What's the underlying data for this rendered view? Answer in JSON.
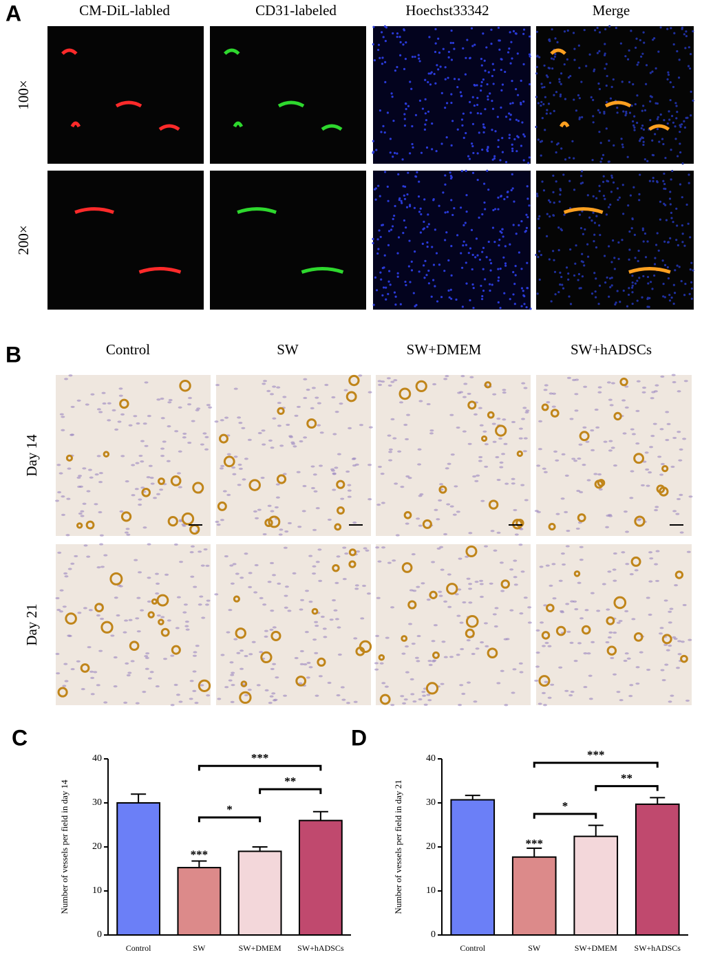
{
  "panel_a": {
    "label": "A",
    "columns": [
      "CM-DiL-labled",
      "CD31-labeled",
      "Hoechst33342",
      "Merge"
    ],
    "rows": [
      "100×",
      "200×"
    ]
  },
  "panel_b": {
    "label": "B",
    "columns": [
      "Control",
      "SW",
      "SW+DMEM",
      "SW+hADSCs"
    ],
    "rows": [
      "Day 14",
      "Day 21"
    ]
  },
  "chart_data": [
    {
      "panel_label": "C",
      "type": "bar",
      "y_label": "Number of  vessels per field in day 14",
      "categories": [
        "Control",
        "SW",
        "SW+DMEM",
        "SW+hADSCs"
      ],
      "values": [
        30,
        15.3,
        19,
        26
      ],
      "errors": [
        2,
        1.5,
        1,
        2
      ],
      "colors": [
        "#6b7ff7",
        "#dc8a8a",
        "#f3d7da",
        "#c0496e"
      ],
      "ylim": [
        0,
        40
      ],
      "yticks": [
        0,
        10,
        20,
        30,
        40
      ],
      "annotations": [
        {
          "text": "***",
          "category": "SW",
          "y": 18
        },
        {
          "text": "*",
          "from": "SW",
          "to": "SW+DMEM",
          "y": 26.7
        },
        {
          "text": "**",
          "from": "SW+DMEM",
          "to": "SW+hADSCs",
          "y": 33.1
        },
        {
          "text": "***",
          "from": "SW",
          "to": "SW+hADSCs",
          "y": 38.4
        }
      ]
    },
    {
      "panel_label": "D",
      "type": "bar",
      "y_label": "Number of  vessels per field in day 21",
      "categories": [
        "Control",
        "SW",
        "SW+DMEM",
        "SW+hADSCs"
      ],
      "values": [
        30.7,
        17.7,
        22.4,
        29.7
      ],
      "errors": [
        1,
        2,
        2.5,
        1.5
      ],
      "colors": [
        "#6b7ff7",
        "#dc8a8a",
        "#f3d7da",
        "#c0496e"
      ],
      "ylim": [
        0,
        40
      ],
      "yticks": [
        0,
        10,
        20,
        30,
        40
      ],
      "annotations": [
        {
          "text": "***",
          "category": "SW",
          "y": 20.5
        },
        {
          "text": "*",
          "from": "SW",
          "to": "SW+DMEM",
          "y": 27.5
        },
        {
          "text": "**",
          "from": "SW+DMEM",
          "to": "SW+hADSCs",
          "y": 33.8
        },
        {
          "text": "***",
          "from": "SW",
          "to": "SW+hADSCs",
          "y": 39.1
        }
      ]
    }
  ]
}
